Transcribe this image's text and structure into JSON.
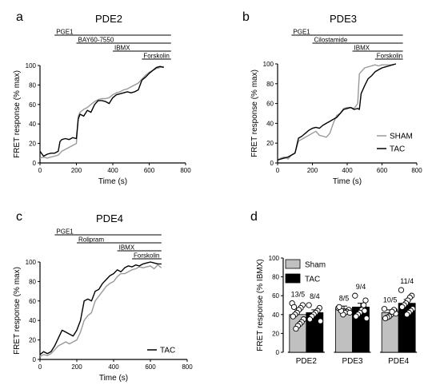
{
  "chart_data": [
    {
      "id": "a",
      "letter": "a",
      "type": "line",
      "title": "PDE2",
      "xlabel": "Time (s)",
      "ylabel": "FRET response (% max)",
      "xlim": [
        0,
        800
      ],
      "ylim": [
        0,
        100
      ],
      "xticks": [
        0,
        200,
        400,
        600,
        800
      ],
      "yticks": [
        0,
        20,
        40,
        60,
        80,
        100
      ],
      "treatments": [
        {
          "label": "PGE1",
          "start": 80,
          "end": 720
        },
        {
          "label": "BAY60-7550",
          "start": 200,
          "end": 720
        },
        {
          "label": "IBMX",
          "start": 400,
          "end": 720
        },
        {
          "label": "Forskolin",
          "start": 560,
          "end": 720
        }
      ],
      "legend": [],
      "series": [
        {
          "name": "SHAM",
          "color": "#999999",
          "x": [
            0,
            20,
            40,
            60,
            80,
            100,
            120,
            140,
            160,
            180,
            200,
            210,
            220,
            240,
            260,
            280,
            300,
            320,
            340,
            360,
            380,
            400,
            420,
            440,
            460,
            480,
            500,
            520,
            540,
            560,
            580,
            600,
            620,
            640,
            660,
            680
          ],
          "y": [
            5,
            6,
            5,
            6,
            7,
            8,
            12,
            14,
            16,
            18,
            20,
            48,
            52,
            55,
            57,
            60,
            63,
            65,
            66,
            66,
            67,
            70,
            72,
            73,
            75,
            76,
            78,
            80,
            82,
            86,
            90,
            93,
            95,
            97,
            98,
            99
          ]
        },
        {
          "name": "TAC",
          "color": "#000000",
          "x": [
            0,
            20,
            40,
            60,
            80,
            100,
            110,
            120,
            140,
            160,
            180,
            200,
            210,
            220,
            240,
            260,
            280,
            300,
            320,
            340,
            360,
            380,
            400,
            420,
            440,
            460,
            480,
            500,
            520,
            540,
            560,
            580,
            600,
            620,
            640,
            660,
            680
          ],
          "y": [
            12,
            7,
            9,
            10,
            10,
            12,
            22,
            24,
            25,
            24,
            26,
            25,
            45,
            50,
            48,
            54,
            52,
            60,
            64,
            64,
            63,
            61,
            67,
            70,
            71,
            72,
            73,
            72,
            73,
            75,
            85,
            88,
            92,
            95,
            98,
            99,
            98
          ]
        }
      ]
    },
    {
      "id": "b",
      "letter": "b",
      "type": "line",
      "title": "PDE3",
      "xlabel": "Time (s)",
      "ylabel": "FRET response (% max)",
      "xlim": [
        0,
        800
      ],
      "ylim": [
        0,
        100
      ],
      "xticks": [
        0,
        200,
        400,
        600,
        800
      ],
      "yticks": [
        0,
        20,
        40,
        60,
        80,
        100
      ],
      "treatments": [
        {
          "label": "PGE1",
          "start": 80,
          "end": 720
        },
        {
          "label": "Cilostamide",
          "start": 200,
          "end": 720
        },
        {
          "label": "IBMX",
          "start": 430,
          "end": 720
        },
        {
          "label": "Forskolin",
          "start": 560,
          "end": 720
        }
      ],
      "legend": [
        {
          "name": "SHAM",
          "color": "#999999"
        },
        {
          "name": "TAC",
          "color": "#000000"
        }
      ],
      "series": [
        {
          "name": "SHAM",
          "color": "#999999",
          "x": [
            0,
            20,
            40,
            60,
            80,
            100,
            120,
            140,
            160,
            180,
            200,
            220,
            240,
            260,
            280,
            300,
            320,
            340,
            360,
            380,
            400,
            420,
            440,
            460,
            470,
            480,
            500,
            520,
            540,
            560,
            580,
            600,
            620,
            640,
            660,
            680
          ],
          "y": [
            3,
            5,
            6,
            4,
            8,
            10,
            22,
            24,
            26,
            28,
            30,
            32,
            28,
            27,
            26,
            30,
            40,
            48,
            50,
            55,
            56,
            56,
            55,
            60,
            90,
            92,
            96,
            97,
            98,
            99,
            98,
            99,
            99,
            99,
            99,
            100
          ]
        },
        {
          "name": "TAC",
          "color": "#000000",
          "x": [
            0,
            20,
            40,
            60,
            80,
            100,
            120,
            140,
            160,
            180,
            200,
            220,
            240,
            260,
            280,
            300,
            320,
            340,
            360,
            380,
            400,
            420,
            440,
            460,
            470,
            480,
            500,
            520,
            540,
            560,
            580,
            600,
            620,
            640,
            660,
            680
          ],
          "y": [
            3,
            4,
            5,
            6,
            8,
            10,
            25,
            27,
            30,
            33,
            35,
            36,
            35,
            38,
            40,
            42,
            44,
            46,
            50,
            54,
            55,
            56,
            54,
            55,
            54,
            70,
            78,
            85,
            88,
            92,
            94,
            96,
            97,
            98,
            99,
            100
          ]
        }
      ]
    },
    {
      "id": "c",
      "letter": "c",
      "type": "line",
      "title": "PDE4",
      "xlabel": "Time (s)",
      "ylabel": "FRET response (% max)",
      "xlim": [
        0,
        800
      ],
      "ylim": [
        0,
        100
      ],
      "xticks": [
        0,
        200,
        400,
        600,
        800
      ],
      "yticks": [
        0,
        20,
        40,
        60,
        80,
        100
      ],
      "treatments": [
        {
          "label": "PGE1",
          "start": 80,
          "end": 660
        },
        {
          "label": "Rolipram",
          "start": 200,
          "end": 660
        },
        {
          "label": "IBMX",
          "start": 420,
          "end": 660
        },
        {
          "label": "Forskolin",
          "start": 500,
          "end": 660
        }
      ],
      "legend": [
        {
          "name": "TAC",
          "color": "#000000"
        }
      ],
      "series": [
        {
          "name": "SHAM",
          "color": "#999999",
          "x": [
            0,
            20,
            40,
            60,
            80,
            100,
            120,
            140,
            160,
            180,
            200,
            220,
            240,
            260,
            280,
            300,
            320,
            340,
            360,
            380,
            400,
            420,
            440,
            460,
            480,
            500,
            520,
            540,
            560,
            580,
            600,
            620,
            640,
            660
          ],
          "y": [
            3,
            5,
            4,
            6,
            10,
            14,
            16,
            18,
            16,
            18,
            20,
            28,
            40,
            45,
            48,
            60,
            65,
            70,
            75,
            78,
            80,
            85,
            88,
            88,
            90,
            92,
            93,
            95,
            94,
            95,
            96,
            93,
            97,
            94
          ]
        },
        {
          "name": "TAC",
          "color": "#000000",
          "x": [
            0,
            20,
            40,
            60,
            80,
            100,
            120,
            140,
            160,
            180,
            200,
            220,
            240,
            260,
            280,
            300,
            320,
            340,
            360,
            380,
            400,
            420,
            440,
            460,
            480,
            500,
            520,
            540,
            560,
            580,
            600,
            620,
            640,
            660
          ],
          "y": [
            5,
            8,
            6,
            8,
            14,
            22,
            30,
            28,
            26,
            24,
            30,
            40,
            60,
            62,
            60,
            70,
            72,
            78,
            82,
            86,
            88,
            92,
            90,
            94,
            96,
            95,
            97,
            96,
            98,
            99,
            100,
            99,
            98,
            98
          ]
        }
      ]
    },
    {
      "id": "d",
      "letter": "d",
      "type": "bar",
      "ylabel": "FRET response (% IBMX)",
      "ylim": [
        0,
        100
      ],
      "yticks": [
        0,
        20,
        40,
        60,
        80,
        100
      ],
      "categories": [
        "PDE2",
        "PDE3",
        "PDE4"
      ],
      "legend": [
        {
          "name": "Sham",
          "color": "#c0c0c0"
        },
        {
          "name": "TAC",
          "color": "#000000"
        }
      ],
      "series": [
        {
          "name": "Sham",
          "color": "#c0c0c0",
          "values": [
            40,
            46,
            42
          ],
          "err": [
            4,
            3,
            3
          ],
          "counts": [
            "13/5",
            "8/5",
            "10/5"
          ],
          "points": [
            [
              52,
              50,
              47,
              45,
              42,
              40,
              38,
              35,
              32,
              30,
              28,
              25,
              48
            ],
            [
              47,
              45,
              43,
              42,
              40,
              44,
              48,
              42
            ],
            [
              46,
              44,
              42,
              40,
              38,
              37,
              36,
              41,
              45,
              43
            ]
          ]
        },
        {
          "name": "TAC",
          "color": "#000000",
          "values": [
            42,
            48,
            52
          ],
          "err": [
            3,
            4,
            4
          ],
          "counts": [
            "8/4",
            "9/4",
            "11/4"
          ],
          "points": [
            [
              50,
              47,
              44,
              42,
              40,
              38,
              35,
              33
            ],
            [
              60,
              55,
              50,
              45,
              42,
              40,
              38,
              36,
              44
            ],
            [
              66,
              60,
              58,
              55,
              52,
              50,
              48,
              46,
              44,
              42,
              40
            ]
          ]
        }
      ]
    }
  ]
}
